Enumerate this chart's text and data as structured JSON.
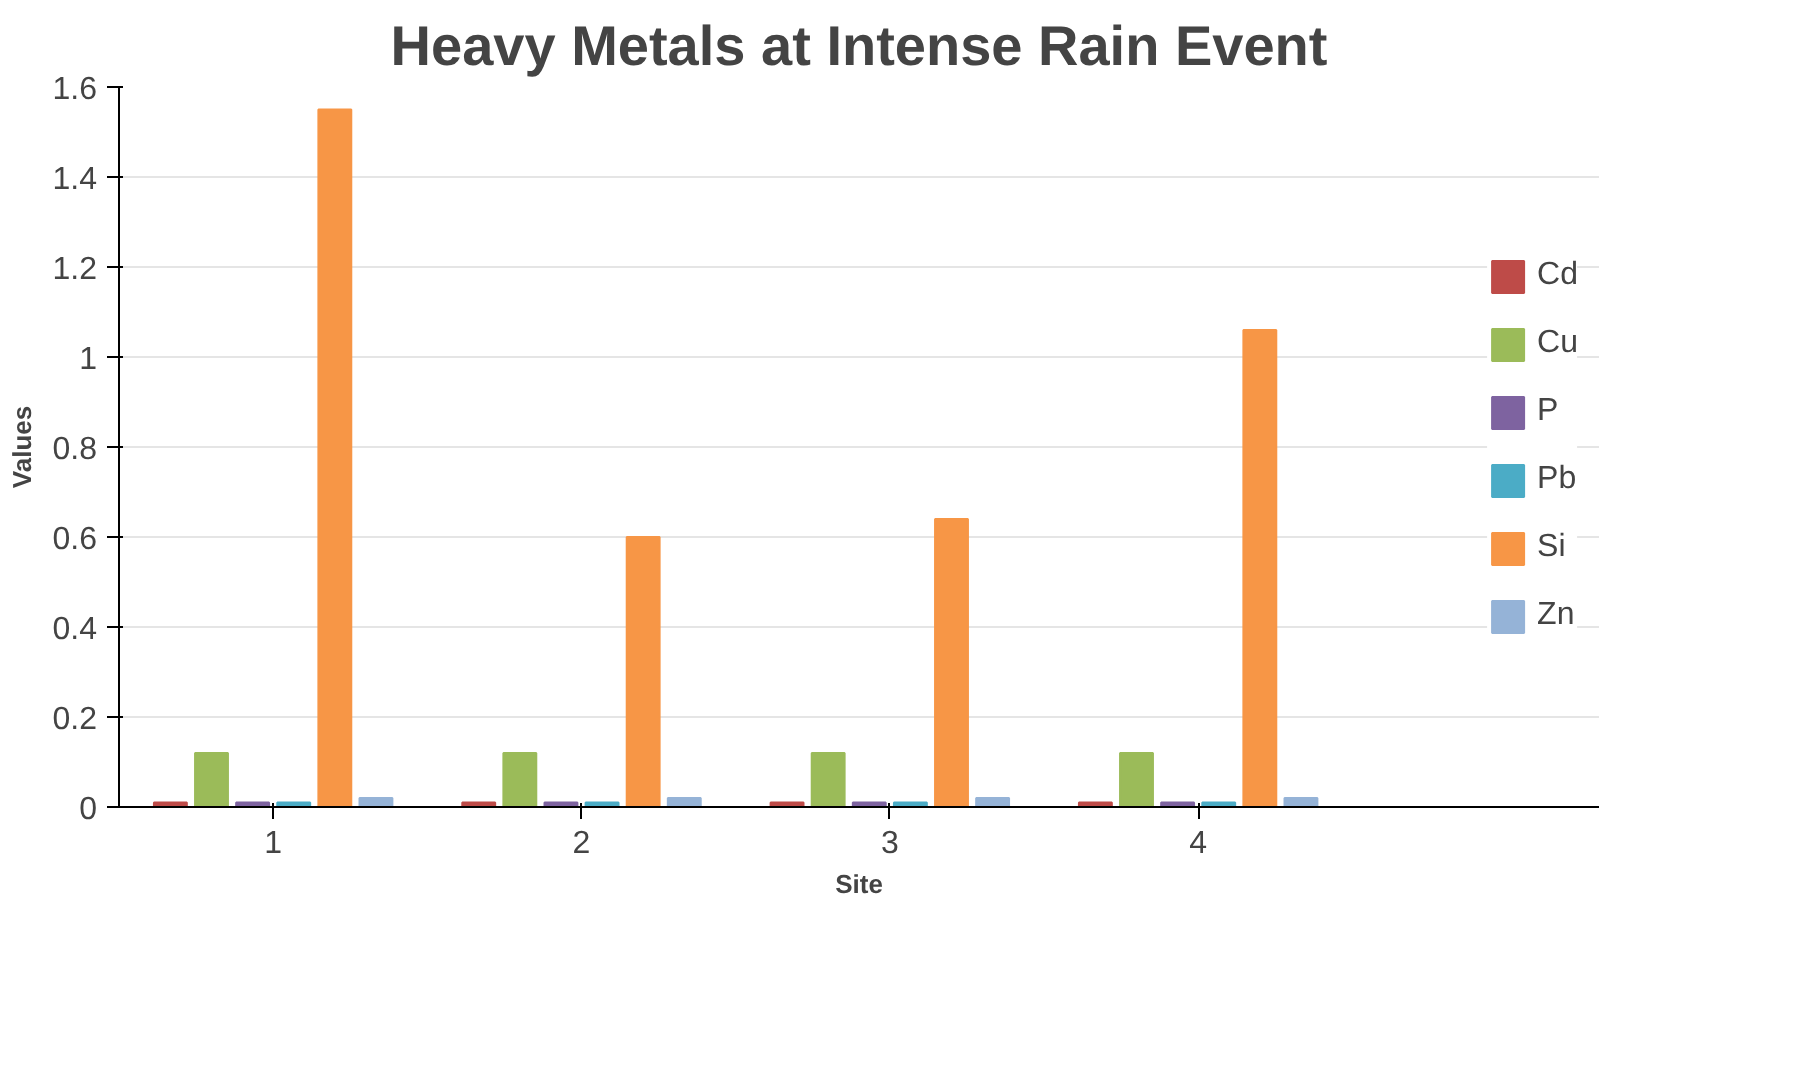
{
  "chart_data": {
    "type": "bar",
    "title": "Heavy Metals at Intense Rain Event",
    "xlabel": "Site",
    "ylabel": "Values",
    "categories": [
      "1",
      "2",
      "3",
      "4"
    ],
    "series": [
      {
        "name": "Cd",
        "color": "#be4b48",
        "values": [
          0.01,
          0.01,
          0.01,
          0.01
        ]
      },
      {
        "name": "Cu",
        "color": "#9bbb59",
        "values": [
          0.12,
          0.12,
          0.12,
          0.12
        ]
      },
      {
        "name": "P",
        "color": "#7e63a0",
        "values": [
          0.01,
          0.01,
          0.01,
          0.01
        ]
      },
      {
        "name": "Pb",
        "color": "#4bacc6",
        "values": [
          0.01,
          0.01,
          0.01,
          0.01
        ]
      },
      {
        "name": "Si",
        "color": "#f79646",
        "values": [
          1.55,
          0.6,
          0.64,
          1.06
        ]
      },
      {
        "name": "Zn",
        "color": "#95b3d7",
        "values": [
          0.02,
          0.02,
          0.02,
          0.02
        ]
      }
    ],
    "ylim": [
      0,
      1.6
    ],
    "yticks": [
      0,
      0.2,
      0.4,
      0.6,
      0.8,
      1,
      1.2,
      1.4,
      1.6
    ],
    "grid": "y",
    "legend": "right"
  }
}
